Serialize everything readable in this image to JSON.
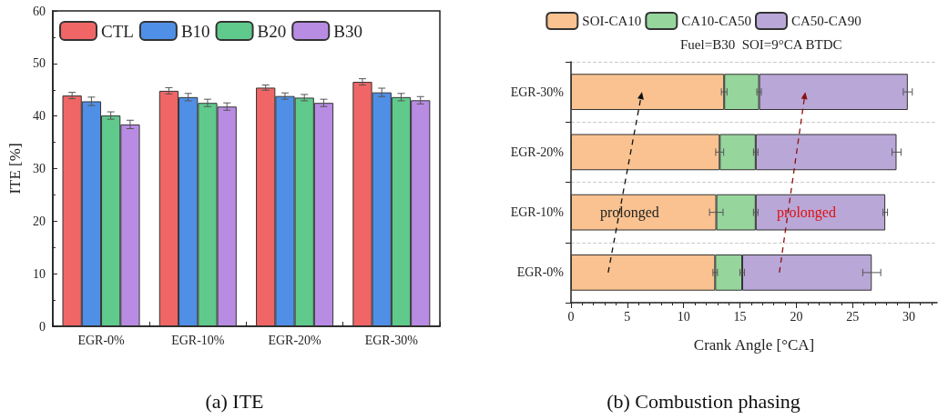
{
  "chart_data": [
    {
      "type": "bar",
      "title": "(a) ITE",
      "ylabel": "ITE [%]",
      "categories": [
        "EGR-0%",
        "EGR-10%",
        "EGR-20%",
        "EGR-30%"
      ],
      "series": [
        {
          "name": "CTL",
          "color": "#f06666",
          "values": [
            43.9,
            44.8,
            45.4,
            46.5
          ],
          "errors": [
            0.6,
            0.6,
            0.5,
            0.6
          ]
        },
        {
          "name": "B10",
          "color": "#4f8fe6",
          "values": [
            42.8,
            43.6,
            43.8,
            44.5
          ],
          "errors": [
            0.8,
            0.7,
            0.6,
            0.8
          ]
        },
        {
          "name": "B20",
          "color": "#60c98c",
          "values": [
            40.1,
            42.5,
            43.5,
            43.6
          ],
          "errors": [
            0.7,
            0.7,
            0.6,
            0.7
          ]
        },
        {
          "name": "B30",
          "color": "#b88ce3",
          "values": [
            38.4,
            41.8,
            42.5,
            43.0
          ],
          "errors": [
            0.8,
            0.7,
            0.7,
            0.7
          ]
        }
      ],
      "ylim": [
        0,
        60
      ],
      "yticks": [
        0,
        10,
        20,
        30,
        40,
        50,
        60
      ],
      "grid": false,
      "legend": "top left"
    },
    {
      "type": "bar",
      "orientation": "horizontal",
      "stacked": true,
      "title": "(b) Combustion phasing",
      "subtitle": "Fuel=B30  SOI=9°CA BTDC",
      "xlabel": "Crank Angle [°CA]",
      "categories": [
        "EGR-30%",
        "EGR-20%",
        "EGR-10%",
        "EGR-0%"
      ],
      "series": [
        {
          "name": "SOI-CA10",
          "color": "#f9c290",
          "values": [
            13.6,
            13.2,
            12.9,
            12.8
          ],
          "errors": [
            0.25,
            0.35,
            0.6,
            0.2
          ]
        },
        {
          "name": "CA10-CA50",
          "color": "#96d59c",
          "values": [
            3.1,
            3.2,
            3.5,
            2.4
          ],
          "errors": [
            0.2,
            0.2,
            0.2,
            0.2
          ]
        },
        {
          "name": "CA50-CA90",
          "color": "#b9a7d8",
          "values": [
            13.2,
            12.5,
            11.5,
            11.5
          ],
          "errors": [
            0.4,
            0.4,
            0.2,
            0.8
          ]
        }
      ],
      "xlim": [
        0,
        32.5
      ],
      "xticks": [
        0,
        5,
        10,
        15,
        20,
        25,
        30
      ],
      "grid": "y",
      "legend": "top",
      "annotations": [
        "prolonged",
        "prolonged"
      ]
    }
  ]
}
